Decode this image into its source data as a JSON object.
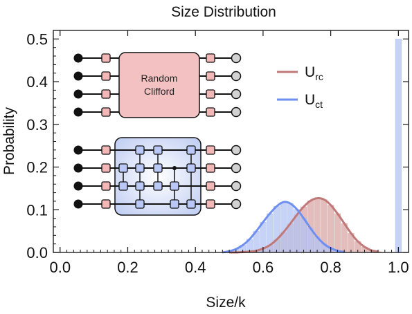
{
  "chart_data": {
    "type": "bar",
    "title": "Size Distribution",
    "xlabel": "Size/k",
    "ylabel": "Probability",
    "xlim": [
      -0.02,
      1.03
    ],
    "ylim": [
      0,
      0.52
    ],
    "xticks": [
      "0.0",
      "0.2",
      "0.4",
      "0.6",
      "0.8",
      "1.0"
    ],
    "yticks": [
      "0.0",
      "0.1",
      "0.2",
      "0.3",
      "0.4",
      "0.5"
    ],
    "legend_position": "upper-right",
    "series": [
      {
        "name": "U_rc",
        "legend_main": "U",
        "legend_sub": "rc",
        "color": "#c07878",
        "bar_color": "#d9a5a5",
        "x": [
          0.5,
          0.52,
          0.54,
          0.56,
          0.58,
          0.6,
          0.62,
          0.64,
          0.66,
          0.68,
          0.7,
          0.72,
          0.74,
          0.76,
          0.78,
          0.8,
          0.82,
          0.84,
          0.86,
          0.88,
          0.9,
          0.92,
          0.94
        ],
        "values": [
          0.0,
          0.0,
          0.001,
          0.002,
          0.004,
          0.009,
          0.017,
          0.03,
          0.047,
          0.067,
          0.088,
          0.107,
          0.121,
          0.127,
          0.124,
          0.111,
          0.091,
          0.068,
          0.045,
          0.026,
          0.013,
          0.005,
          0.002
        ]
      },
      {
        "name": "U_ct",
        "legend_main": "U",
        "legend_sub": "ct",
        "color": "#6e8ff0",
        "bar_color": "#b3c3f3",
        "x": [
          0.48,
          0.5,
          0.52,
          0.54,
          0.56,
          0.58,
          0.6,
          0.62,
          0.64,
          0.66,
          0.68,
          0.7,
          0.72,
          0.74,
          0.76,
          0.78,
          0.8,
          0.82,
          0.84,
          1.0
        ],
        "values": [
          0.0,
          0.003,
          0.008,
          0.017,
          0.031,
          0.05,
          0.071,
          0.091,
          0.108,
          0.118,
          0.115,
          0.101,
          0.08,
          0.057,
          0.036,
          0.02,
          0.01,
          0.004,
          0.001,
          0.5
        ]
      }
    ]
  },
  "inset": {
    "top_block_line1": "Random",
    "top_block_line2": "Clifford"
  }
}
